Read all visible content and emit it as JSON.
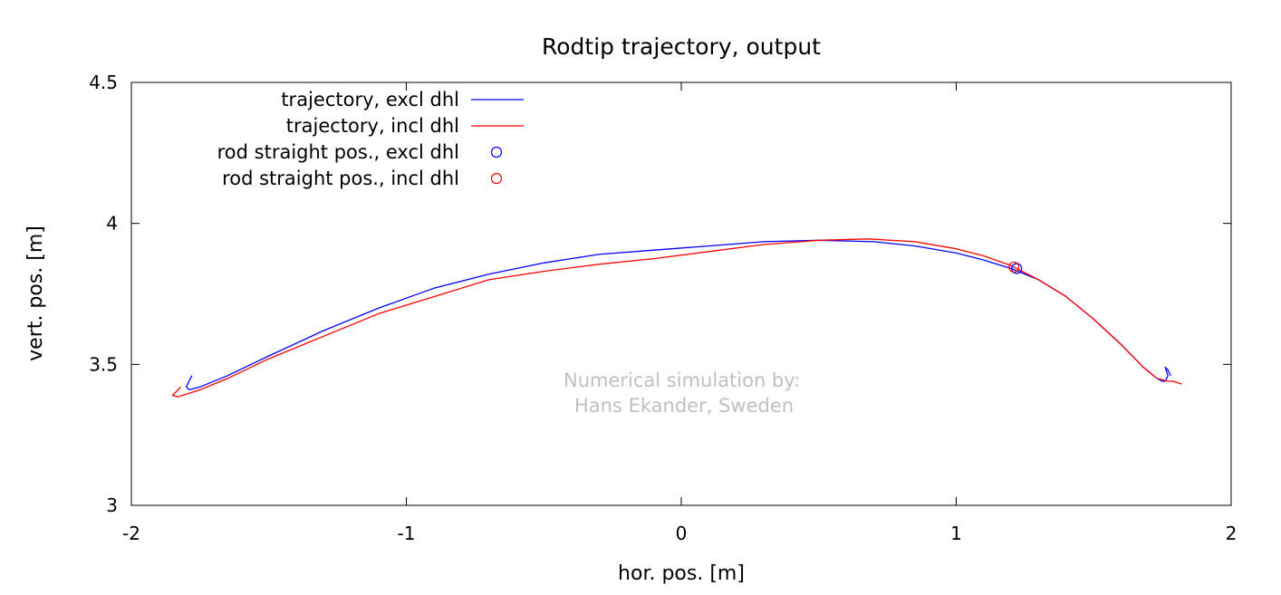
{
  "chart_data": {
    "type": "line",
    "title": "Rodtip trajectory, output",
    "xlabel": "hor. pos. [m]",
    "ylabel": "vert. pos. [m]",
    "xlim": [
      -2,
      2
    ],
    "ylim": [
      3,
      4.5
    ],
    "xticks": [
      "-2",
      "-1",
      "0",
      "1",
      "2"
    ],
    "yticks": [
      "3",
      "3.5",
      "4",
      "4.5"
    ],
    "grid": false,
    "legend_position": "top-left",
    "series": [
      {
        "name": "trajectory, excl dhl",
        "kind": "line",
        "color": "#0000ff",
        "x": [
          -1.78,
          -1.79,
          -1.8,
          -1.79,
          -1.75,
          -1.65,
          -1.5,
          -1.3,
          -1.1,
          -0.9,
          -0.7,
          -0.5,
          -0.3,
          -0.1,
          0.1,
          0.3,
          0.5,
          0.7,
          0.85,
          1.0,
          1.1,
          1.2,
          1.3,
          1.4,
          1.5,
          1.6,
          1.68,
          1.73,
          1.75,
          1.76,
          1.77,
          1.76,
          1.77,
          1.78
        ],
        "y": [
          3.46,
          3.44,
          3.42,
          3.41,
          3.42,
          3.46,
          3.53,
          3.62,
          3.7,
          3.77,
          3.82,
          3.86,
          3.89,
          3.905,
          3.92,
          3.935,
          3.94,
          3.935,
          3.92,
          3.895,
          3.87,
          3.84,
          3.8,
          3.74,
          3.66,
          3.57,
          3.49,
          3.45,
          3.44,
          3.44,
          3.46,
          3.49,
          3.48,
          3.46
        ]
      },
      {
        "name": "trajectory, incl dhl",
        "kind": "line",
        "color": "#ff0000",
        "x": [
          -1.82,
          -1.84,
          -1.85,
          -1.83,
          -1.75,
          -1.65,
          -1.5,
          -1.3,
          -1.1,
          -0.9,
          -0.7,
          -0.5,
          -0.3,
          -0.1,
          0.1,
          0.3,
          0.5,
          0.68,
          0.85,
          1.0,
          1.1,
          1.2,
          1.3,
          1.4,
          1.5,
          1.6,
          1.68,
          1.73,
          1.77,
          1.79,
          1.82
        ],
        "y": [
          3.42,
          3.4,
          3.39,
          3.385,
          3.41,
          3.45,
          3.52,
          3.6,
          3.68,
          3.74,
          3.8,
          3.83,
          3.855,
          3.875,
          3.9,
          3.925,
          3.94,
          3.945,
          3.935,
          3.91,
          3.885,
          3.85,
          3.8,
          3.74,
          3.66,
          3.57,
          3.49,
          3.45,
          3.44,
          3.44,
          3.43
        ]
      },
      {
        "name": "rod straight pos., excl dhl",
        "kind": "marker",
        "color": "#0000ff",
        "x": [
          1.22
        ],
        "y": [
          3.84
        ]
      },
      {
        "name": "rod straight pos., incl dhl",
        "kind": "marker",
        "color": "#ff0000",
        "x": [
          1.21
        ],
        "y": [
          3.845
        ]
      }
    ],
    "annotation_lines": [
      "Numerical simulation by:",
      "Hans Ekander, Sweden"
    ]
  }
}
